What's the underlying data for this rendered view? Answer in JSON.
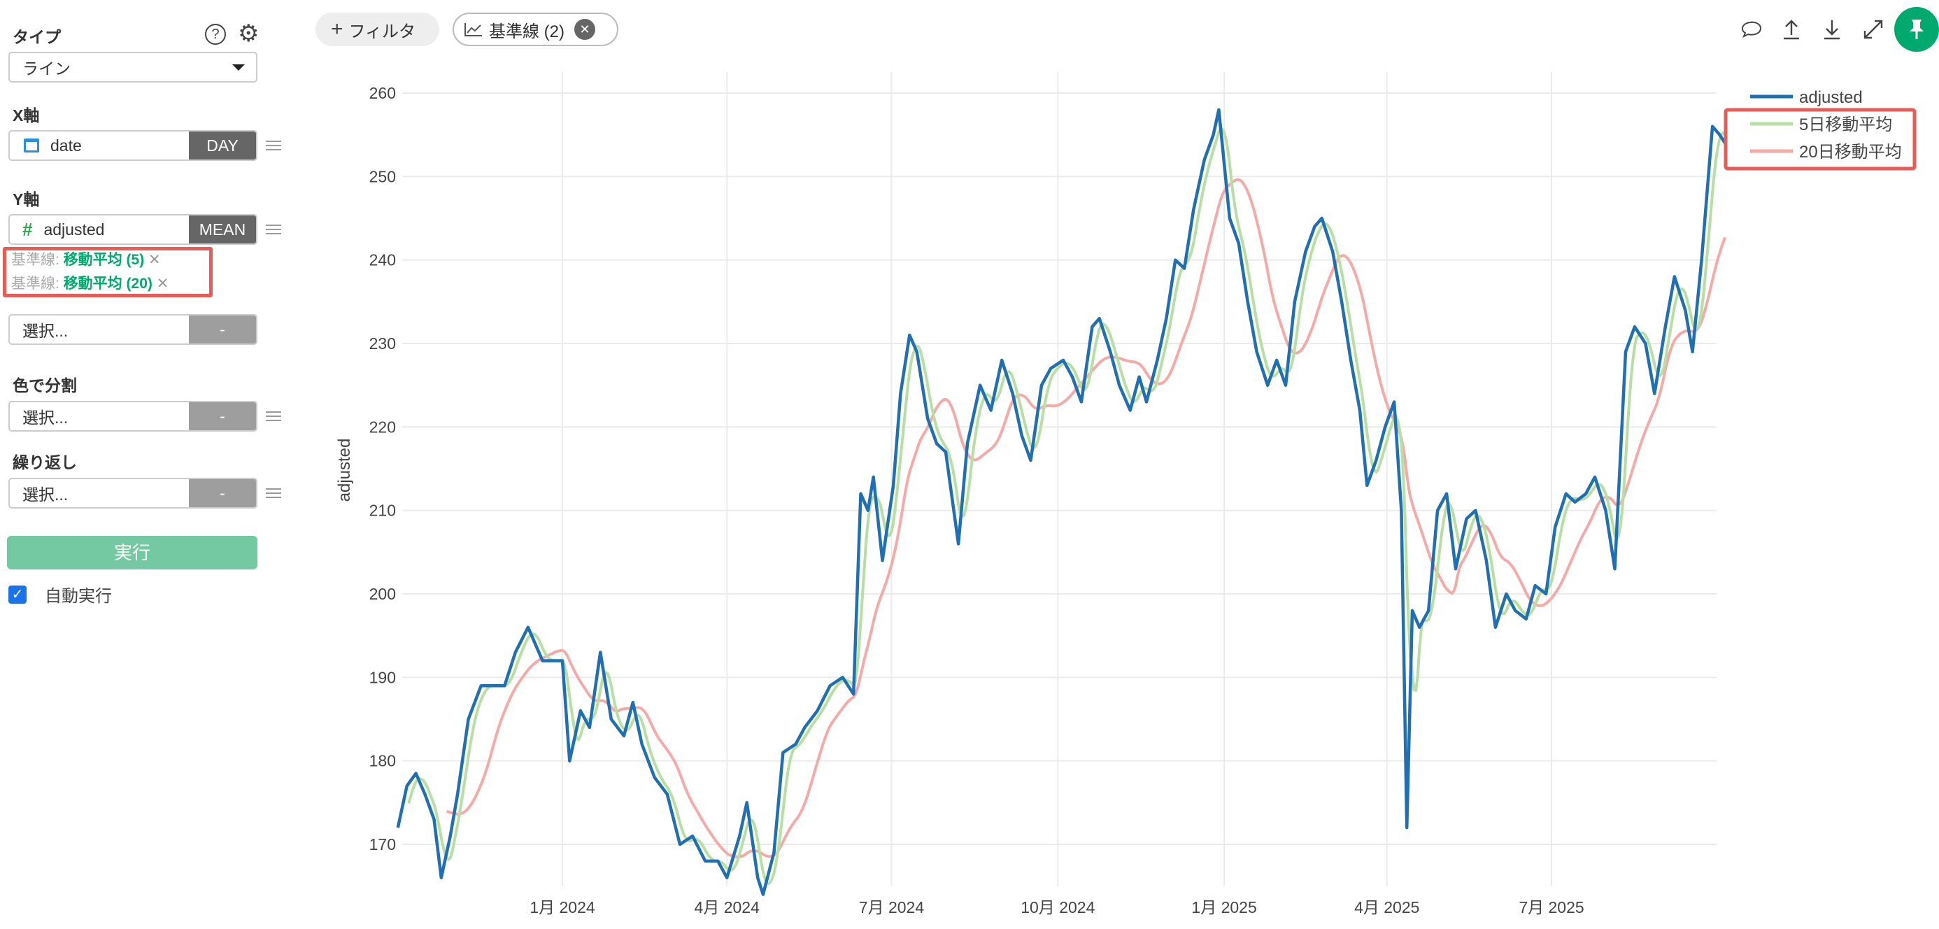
{
  "sidebar": {
    "type_label": "タイプ",
    "type_value": "ライン",
    "x_label": "X軸",
    "x_field": "date",
    "x_agg": "DAY",
    "y_label": "Y軸",
    "y_field": "adjusted",
    "y_agg": "MEAN",
    "baselines": [
      {
        "prefix": "基準線:",
        "name": "移動平均 (5)"
      },
      {
        "prefix": "基準線:",
        "name": "移動平均 (20)"
      }
    ],
    "extra_placeholder": "選択...",
    "extra_agg": "-",
    "color_label": "色で分割",
    "color_placeholder": "選択...",
    "color_agg": "-",
    "repeat_label": "繰り返し",
    "repeat_placeholder": "選択...",
    "repeat_agg": "-",
    "run_label": "実行",
    "auto_run_label": "自動実行",
    "auto_run_checked": true
  },
  "toolbar": {
    "filter_label": "フィルタ",
    "baseline_label": "基準線 (2)"
  },
  "colors": {
    "accent": "#00a96e",
    "adjusted": "#1f6fb2",
    "ma5": "#b7dfa5",
    "ma20": "#f4aaa6",
    "highlight": "#e85c57"
  },
  "chart_data": {
    "type": "line",
    "ylabel": "adjusted",
    "xlabel": "",
    "ylim": [
      163,
      262
    ],
    "yticks": [
      170,
      180,
      190,
      200,
      210,
      220,
      230,
      240,
      250,
      260
    ],
    "xticks": [
      {
        "date": "2024-01-01",
        "label": "1月 2024"
      },
      {
        "date": "2024-04-01",
        "label": "4月 2024"
      },
      {
        "date": "2024-07-01",
        "label": "7月 2024"
      },
      {
        "date": "2024-10-01",
        "label": "10月 2024"
      },
      {
        "date": "2025-01-01",
        "label": "1月 2025"
      },
      {
        "date": "2025-04-01",
        "label": "4月 2025"
      },
      {
        "date": "2025-07-01",
        "label": "7月 2025"
      }
    ],
    "legend": [
      "adjusted",
      "5日移動平均",
      "20日移動平均"
    ],
    "moving_average_windows": [
      5,
      20
    ],
    "series": {
      "adjusted": {
        "x": [
          "2023-10-02",
          "2023-10-07",
          "2023-10-12",
          "2023-10-17",
          "2023-10-22",
          "2023-10-26",
          "2023-10-31",
          "2023-11-04",
          "2023-11-10",
          "2023-11-17",
          "2023-11-23",
          "2023-11-30",
          "2023-12-06",
          "2023-12-13",
          "2023-12-21",
          "2024-01-01",
          "2024-01-05",
          "2024-01-11",
          "2024-01-16",
          "2024-01-22",
          "2024-01-28",
          "2024-02-04",
          "2024-02-09",
          "2024-02-14",
          "2024-02-21",
          "2024-02-28",
          "2024-03-06",
          "2024-03-13",
          "2024-03-20",
          "2024-03-27",
          "2024-04-01",
          "2024-04-08",
          "2024-04-12",
          "2024-04-18",
          "2024-04-21",
          "2024-04-27",
          "2024-05-02",
          "2024-05-09",
          "2024-05-14",
          "2024-05-21",
          "2024-05-28",
          "2024-06-04",
          "2024-06-10",
          "2024-06-14",
          "2024-06-18",
          "2024-06-21",
          "2024-06-26",
          "2024-07-02",
          "2024-07-06",
          "2024-07-11",
          "2024-07-15",
          "2024-07-21",
          "2024-07-26",
          "2024-07-31",
          "2024-08-07",
          "2024-08-12",
          "2024-08-19",
          "2024-08-25",
          "2024-08-31",
          "2024-09-06",
          "2024-09-11",
          "2024-09-16",
          "2024-09-22",
          "2024-09-27",
          "2024-10-04",
          "2024-10-09",
          "2024-10-14",
          "2024-10-20",
          "2024-10-24",
          "2024-10-30",
          "2024-11-04",
          "2024-11-10",
          "2024-11-15",
          "2024-11-19",
          "2024-11-25",
          "2024-11-30",
          "2024-12-05",
          "2024-12-10",
          "2024-12-15",
          "2024-12-21",
          "2024-12-26",
          "2024-12-29",
          "2025-01-04",
          "2025-01-09",
          "2025-01-14",
          "2025-01-19",
          "2025-01-25",
          "2025-01-30",
          "2025-02-04",
          "2025-02-09",
          "2025-02-15",
          "2025-02-20",
          "2025-02-24",
          "2025-03-02",
          "2025-03-07",
          "2025-03-12",
          "2025-03-17",
          "2025-03-21",
          "2025-03-26",
          "2025-03-31",
          "2025-04-05",
          "2025-04-09",
          "2025-04-12",
          "2025-04-15",
          "2025-04-19",
          "2025-04-24",
          "2025-04-29",
          "2025-05-04",
          "2025-05-09",
          "2025-05-15",
          "2025-05-20",
          "2025-05-26",
          "2025-05-31",
          "2025-06-06",
          "2025-06-11",
          "2025-06-17",
          "2025-06-22",
          "2025-06-28",
          "2025-07-03",
          "2025-07-09",
          "2025-07-14",
          "2025-07-20",
          "2025-07-25",
          "2025-07-31",
          "2025-08-05",
          "2025-08-11",
          "2025-08-16",
          "2025-08-22",
          "2025-08-27",
          "2025-09-02",
          "2025-09-07",
          "2025-09-13",
          "2025-09-17",
          "2025-09-22",
          "2025-09-28",
          "2025-10-02",
          "2025-10-05"
        ],
        "y": [
          172,
          177,
          178.5,
          176,
          173,
          166,
          171,
          176,
          185,
          189,
          189,
          189,
          193,
          196,
          192,
          192,
          180,
          186,
          184,
          193,
          185,
          183,
          187,
          182,
          178,
          176,
          170,
          171,
          168,
          168,
          166,
          171,
          175,
          166,
          164,
          169,
          181,
          182,
          184,
          186,
          189,
          190,
          188,
          212,
          210,
          214,
          204,
          213,
          224,
          231,
          229,
          221,
          218,
          217,
          206,
          218,
          225,
          222,
          228,
          224,
          219,
          216,
          225,
          227,
          228,
          226,
          223,
          232,
          233,
          229,
          225,
          222,
          226,
          223,
          228,
          233,
          240,
          239,
          246,
          252,
          255,
          258,
          245,
          242,
          235,
          229,
          225,
          228,
          225,
          235,
          241,
          244,
          245,
          241,
          235,
          228,
          222,
          213,
          216,
          220,
          223,
          210,
          172,
          198,
          196,
          198,
          210,
          212,
          203,
          209,
          210,
          204,
          196,
          200,
          198,
          197,
          201,
          200,
          208,
          212,
          211,
          212,
          214,
          210,
          203,
          229,
          232,
          230,
          224,
          232,
          238,
          234,
          229,
          240,
          256,
          255,
          254
        ]
      }
    }
  }
}
